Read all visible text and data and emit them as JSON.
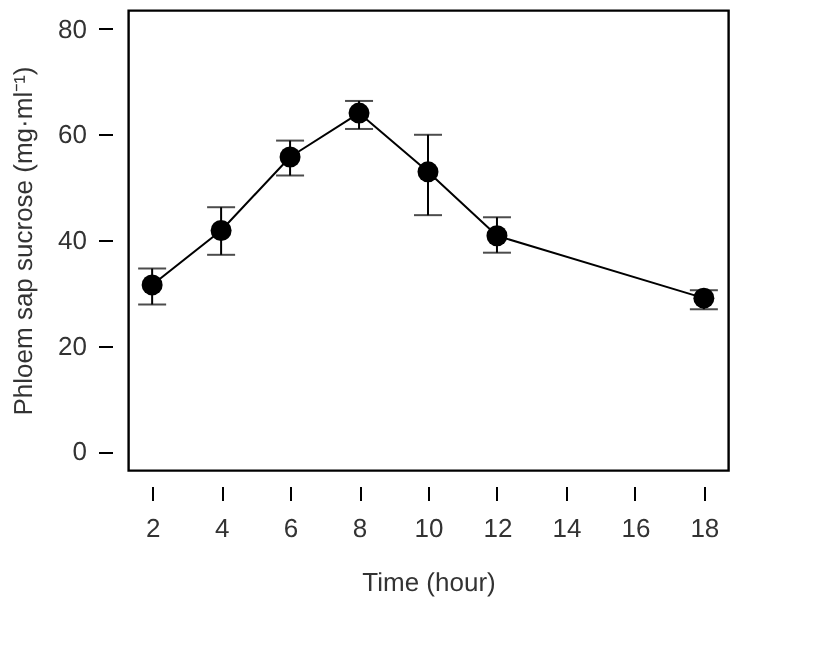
{
  "chart_data": {
    "type": "line",
    "xlabel": "Time (hour)",
    "ylabel": "Phloem sap sucrose (mg·ml⁻¹)",
    "x": [
      2,
      4,
      6,
      8,
      10,
      12,
      18
    ],
    "series": [
      {
        "color": "#000000",
        "values": [
          31.5,
          41.8,
          55.7,
          64.0,
          52.9,
          40.8,
          29.0
        ],
        "errors": [
          [
            27.8,
            34.6
          ],
          [
            37.2,
            46.2
          ],
          [
            52.2,
            58.8
          ],
          [
            61.0,
            66.3
          ],
          [
            44.7,
            59.9
          ],
          [
            37.6,
            44.3
          ],
          [
            26.9,
            30.5
          ]
        ]
      }
    ],
    "xlim": [
      1.3,
      18.7
    ],
    "ylim": [
      -3.5,
      83.5
    ],
    "xticks": [
      2,
      4,
      6,
      8,
      10,
      12,
      14,
      16,
      18
    ],
    "yticks": [
      0,
      20,
      40,
      60,
      80
    ],
    "grid": false,
    "marker": "circle",
    "line_style": "solid"
  }
}
